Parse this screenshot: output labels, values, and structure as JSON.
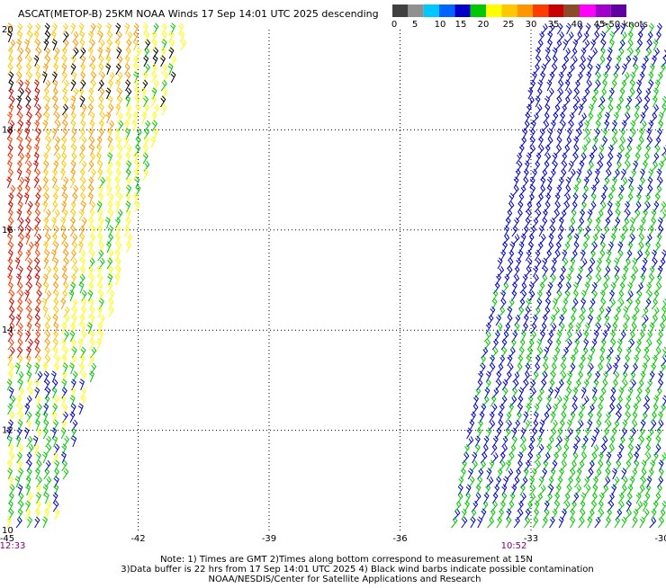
{
  "header": {
    "title": "ASCAT(METOP-B) 25KM NOAA Winds 17 Sep 14:01 UTC 2025 descending"
  },
  "colorbar": {
    "colors": [
      "#404040",
      "#909090",
      "#00c8ff",
      "#0064ff",
      "#0000c8",
      "#00c800",
      "#ffff00",
      "#ffc800",
      "#ff9600",
      "#ff3c00",
      "#c80000",
      "#8c4b28",
      "#ff00ff",
      "#a000c8",
      "#6000a0"
    ],
    "labels": [
      "0",
      "5",
      "10",
      "15",
      "20",
      "25",
      "30",
      "35",
      "40",
      "45",
      ">50 knots"
    ]
  },
  "map": {
    "lat_labels": [
      "20",
      "18",
      "16",
      "14",
      "12",
      "10"
    ],
    "lon_labels": [
      "-45",
      "-42",
      "-39",
      "-36",
      "-33",
      "-30"
    ],
    "pass_times": [
      {
        "label": "12:33",
        "color": "#800080"
      },
      {
        "label": "10:52",
        "color": "#800080"
      }
    ]
  },
  "notes": [
    "Note: 1) Times are GMT 2)Times along bottom correspond to measurement at 15N",
    "3)Data buffer is 22 hrs from 17 Sep 14:01 UTC 2025 4) Black wind barbs indicate possible contamination",
    "NOAA/NESDIS/Center for Satellite Applications and Research"
  ]
}
